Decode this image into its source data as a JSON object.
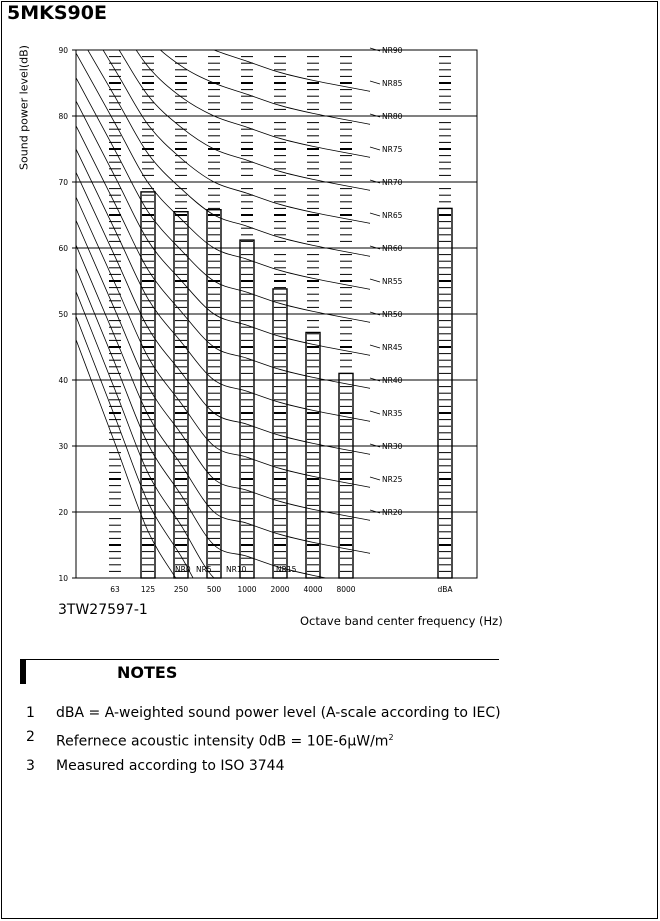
{
  "header": {
    "model": "5MKS90E"
  },
  "figure_id": "3TW27597-1",
  "chart_data": {
    "type": "bar",
    "title": "",
    "ylabel": "Sound power level(dB)",
    "xlabel": "Octave band center frequency (Hz)",
    "ylim": [
      10,
      90
    ],
    "yticks": [
      10,
      20,
      30,
      40,
      50,
      60,
      70,
      80,
      90
    ],
    "grid": true,
    "categories": [
      "63",
      "125",
      "250",
      "500",
      "1000",
      "2000",
      "4000",
      "8000",
      "dBA"
    ],
    "values": [
      null,
      68.5,
      65.5,
      65.8,
      61.2,
      53.8,
      47.2,
      41.0,
      66.0
    ],
    "nr_curves": [
      {
        "name": "NR90",
        "values": [
          103.1,
          96.3,
          92.2,
          90.0,
          88.3,
          86.6,
          85.4
        ]
      },
      {
        "name": "NR85",
        "values": [
          99.1,
          91.9,
          87.6,
          85.0,
          83.3,
          81.6,
          80.4
        ]
      },
      {
        "name": "NR80",
        "values": [
          95.0,
          87.5,
          82.9,
          80.0,
          78.3,
          76.6,
          75.4
        ]
      },
      {
        "name": "NR75",
        "values": [
          91.0,
          83.1,
          78.3,
          75.0,
          73.3,
          71.6,
          70.4
        ]
      },
      {
        "name": "NR70",
        "values": [
          87.0,
          78.7,
          73.6,
          70.0,
          68.3,
          66.6,
          65.4
        ]
      },
      {
        "name": "NR65",
        "values": [
          82.9,
          74.3,
          69.0,
          65.0,
          63.3,
          61.6,
          60.4
        ]
      },
      {
        "name": "NR60",
        "values": [
          78.9,
          69.9,
          64.4,
          60.0,
          58.3,
          56.6,
          55.4
        ]
      },
      {
        "name": "NR55",
        "values": [
          74.8,
          65.5,
          59.7,
          55.0,
          53.3,
          51.6,
          50.4
        ]
      },
      {
        "name": "NR50",
        "values": [
          70.8,
          61.1,
          55.1,
          50.0,
          48.3,
          46.6,
          45.4
        ]
      },
      {
        "name": "NR45",
        "values": [
          66.7,
          56.7,
          50.4,
          45.0,
          43.3,
          41.6,
          40.4
        ]
      },
      {
        "name": "NR40",
        "values": [
          62.7,
          52.3,
          45.8,
          40.0,
          38.3,
          36.6,
          35.4
        ]
      },
      {
        "name": "NR35",
        "values": [
          58.7,
          47.9,
          41.2,
          35.0,
          33.3,
          31.6,
          30.4
        ]
      },
      {
        "name": "NR30",
        "values": [
          54.6,
          43.5,
          36.5,
          30.0,
          28.3,
          26.6,
          25.4
        ]
      },
      {
        "name": "NR25",
        "values": [
          50.6,
          39.1,
          31.9,
          25.0,
          23.3,
          21.6,
          20.4
        ]
      },
      {
        "name": "NR20",
        "values": [
          46.5,
          34.7,
          27.2,
          20.0,
          18.3,
          16.6,
          15.4
        ]
      },
      {
        "name": "NR15",
        "values": [
          42.5,
          30.3,
          22.6,
          15.0,
          13.3,
          11.6,
          10.4
        ]
      },
      {
        "name": "NR10",
        "values": [
          38.5,
          25.9,
          18.0,
          10.0,
          8.3,
          6.6,
          5.4
        ]
      },
      {
        "name": "NR5",
        "values": [
          34.4,
          21.5,
          13.3,
          5.0,
          3.3,
          1.6,
          0.4
        ]
      },
      {
        "name": "NR0",
        "values": [
          30.4,
          17.1,
          8.7,
          0.0,
          -1.7,
          -3.4,
          -4.6
        ]
      }
    ]
  },
  "notes": {
    "title": "NOTES",
    "items": [
      {
        "num": "1",
        "text": "dBA = A-weighted sound power level (A-scale according to IEC)"
      },
      {
        "num": "2",
        "text": "Refernece acoustic intensity 0dB = 10E-6µW/m",
        "sup": "2"
      },
      {
        "num": "3",
        "text": "Measured according to ISO 3744"
      }
    ]
  }
}
